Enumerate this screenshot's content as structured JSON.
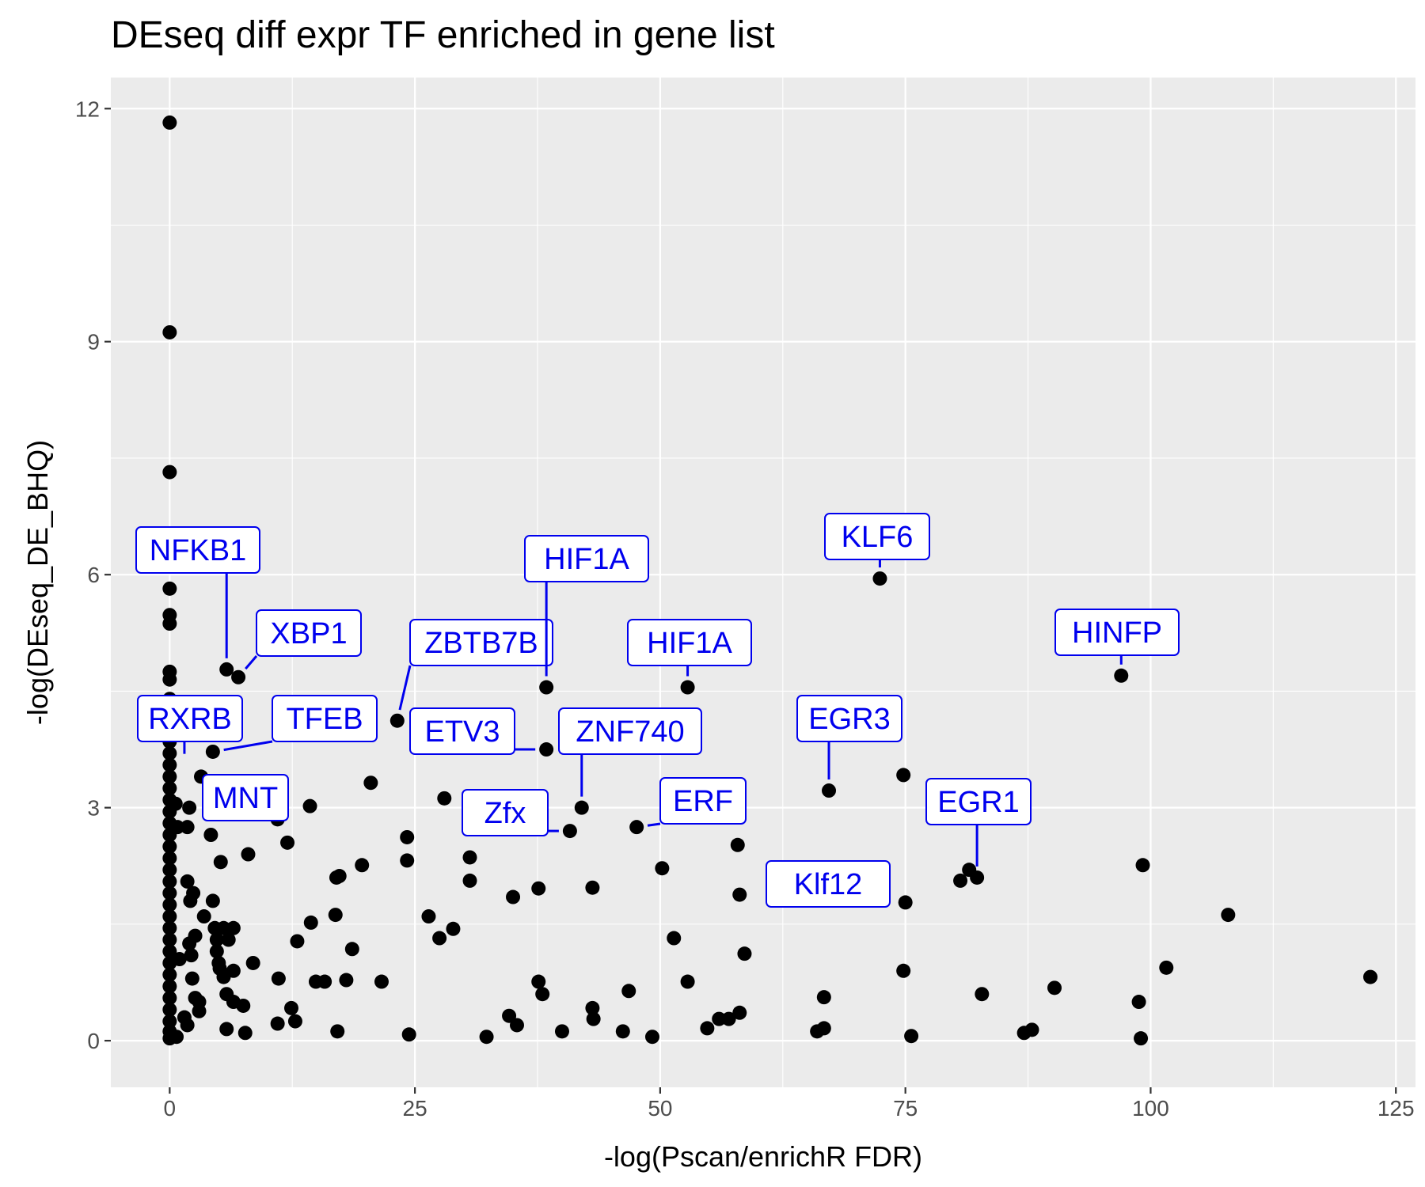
{
  "chart_data": {
    "type": "scatter",
    "title": "DEseq diff expr TF enriched in gene list",
    "xlabel": "-log(Pscan/enrichR FDR)",
    "ylabel": "-log(DEseq_DE_BHQ)",
    "xlim": [
      -6,
      127
    ],
    "ylim": [
      -0.6,
      12.4
    ],
    "xticks": [
      0,
      25,
      50,
      75,
      100,
      125
    ],
    "yticks": [
      0,
      3,
      6,
      9,
      12
    ],
    "grid": true,
    "legend": "none",
    "point_color": "#000000",
    "label_color": "#0000EE",
    "points": [
      {
        "x": 0,
        "y": 11.82
      },
      {
        "x": 0,
        "y": 9.12
      },
      {
        "x": 0,
        "y": 7.32
      },
      {
        "x": 0,
        "y": 5.82
      },
      {
        "x": 0,
        "y": 5.48
      },
      {
        "x": 0,
        "y": 5.37
      },
      {
        "x": 0,
        "y": 4.75
      },
      {
        "x": 0,
        "y": 4.65
      },
      {
        "x": 0,
        "y": 4.4
      },
      {
        "x": 0,
        "y": 4.2
      },
      {
        "x": 0,
        "y": 4.0
      },
      {
        "x": 0,
        "y": 3.85
      },
      {
        "x": 0,
        "y": 3.7
      },
      {
        "x": 0,
        "y": 3.55
      },
      {
        "x": 0,
        "y": 3.4
      },
      {
        "x": 0,
        "y": 3.25
      },
      {
        "x": 0,
        "y": 3.1
      },
      {
        "x": 0,
        "y": 2.95
      },
      {
        "x": 0,
        "y": 2.8
      },
      {
        "x": 0,
        "y": 2.65
      },
      {
        "x": 0,
        "y": 2.5
      },
      {
        "x": 0,
        "y": 2.35
      },
      {
        "x": 0,
        "y": 2.2
      },
      {
        "x": 0,
        "y": 2.05
      },
      {
        "x": 0,
        "y": 1.9
      },
      {
        "x": 0,
        "y": 1.75
      },
      {
        "x": 0,
        "y": 1.6
      },
      {
        "x": 0,
        "y": 1.45
      },
      {
        "x": 0,
        "y": 1.3
      },
      {
        "x": 0,
        "y": 1.15
      },
      {
        "x": 0,
        "y": 1.0
      },
      {
        "x": 0,
        "y": 0.85
      },
      {
        "x": 0,
        "y": 0.7
      },
      {
        "x": 0,
        "y": 0.55
      },
      {
        "x": 0,
        "y": 0.4
      },
      {
        "x": 0,
        "y": 0.25
      },
      {
        "x": 0,
        "y": 0.12
      },
      {
        "x": 0,
        "y": 0.03
      },
      {
        "x": 0.6,
        "y": 3.05
      },
      {
        "x": 0.8,
        "y": 2.75
      },
      {
        "x": 1.0,
        "y": 1.05
      },
      {
        "x": 0.7,
        "y": 0.05
      },
      {
        "x": 1.5,
        "y": 0.3
      },
      {
        "x": 1.8,
        "y": 2.05
      },
      {
        "x": 1.8,
        "y": 2.75
      },
      {
        "x": 2.1,
        "y": 1.8
      },
      {
        "x": 2.4,
        "y": 1.9
      },
      {
        "x": 2.0,
        "y": 1.25
      },
      {
        "x": 2.2,
        "y": 1.1
      },
      {
        "x": 2.6,
        "y": 1.35
      },
      {
        "x": 2.3,
        "y": 0.8
      },
      {
        "x": 2.6,
        "y": 0.55
      },
      {
        "x": 3.0,
        "y": 0.5
      },
      {
        "x": 3.0,
        "y": 0.38
      },
      {
        "x": 2.0,
        "y": 3.0
      },
      {
        "x": 3.2,
        "y": 3.4
      },
      {
        "x": 3.5,
        "y": 1.6
      },
      {
        "x": 1.8,
        "y": 0.2
      },
      {
        "x": 4.2,
        "y": 2.65
      },
      {
        "x": 4.4,
        "y": 1.8
      },
      {
        "x": 4.6,
        "y": 1.45
      },
      {
        "x": 4.8,
        "y": 1.3
      },
      {
        "x": 4.8,
        "y": 1.15
      },
      {
        "x": 5.0,
        "y": 1.0
      },
      {
        "x": 5.1,
        "y": 0.93
      },
      {
        "x": 5.5,
        "y": 0.82
      },
      {
        "x": 5.2,
        "y": 2.3
      },
      {
        "x": 5.5,
        "y": 1.45
      },
      {
        "x": 6.0,
        "y": 1.3
      },
      {
        "x": 6.5,
        "y": 1.45
      },
      {
        "x": 5.8,
        "y": 0.6
      },
      {
        "x": 6.5,
        "y": 0.5
      },
      {
        "x": 7.5,
        "y": 0.45
      },
      {
        "x": 6.5,
        "y": 0.9
      },
      {
        "x": 5.8,
        "y": 0.15
      },
      {
        "x": 7.7,
        "y": 0.1
      },
      {
        "x": 8.5,
        "y": 1.0
      },
      {
        "x": 8.0,
        "y": 2.4
      },
      {
        "x": 4.4,
        "y": 3.72
      },
      {
        "x": 5.8,
        "y": 4.78
      },
      {
        "x": 7.0,
        "y": 4.68
      },
      {
        "x": 11.0,
        "y": 2.85
      },
      {
        "x": 11.1,
        "y": 0.8
      },
      {
        "x": 11.0,
        "y": 0.22
      },
      {
        "x": 12.0,
        "y": 2.55
      },
      {
        "x": 12.4,
        "y": 0.42
      },
      {
        "x": 12.8,
        "y": 0.25
      },
      {
        "x": 13.0,
        "y": 1.28
      },
      {
        "x": 14.3,
        "y": 3.02
      },
      {
        "x": 14.4,
        "y": 1.52
      },
      {
        "x": 14.9,
        "y": 0.76
      },
      {
        "x": 15.8,
        "y": 0.76
      },
      {
        "x": 16.9,
        "y": 1.62
      },
      {
        "x": 17.0,
        "y": 2.1
      },
      {
        "x": 17.3,
        "y": 2.12
      },
      {
        "x": 18.0,
        "y": 0.78
      },
      {
        "x": 18.6,
        "y": 1.18
      },
      {
        "x": 17.1,
        "y": 0.12
      },
      {
        "x": 19.6,
        "y": 2.26
      },
      {
        "x": 20.5,
        "y": 3.32
      },
      {
        "x": 21.6,
        "y": 0.76
      },
      {
        "x": 23.2,
        "y": 4.12
      },
      {
        "x": 24.2,
        "y": 2.62
      },
      {
        "x": 24.2,
        "y": 2.32
      },
      {
        "x": 24.4,
        "y": 0.08
      },
      {
        "x": 26.4,
        "y": 1.6
      },
      {
        "x": 27.5,
        "y": 1.32
      },
      {
        "x": 28.0,
        "y": 3.12
      },
      {
        "x": 28.9,
        "y": 1.44
      },
      {
        "x": 30.6,
        "y": 2.36
      },
      {
        "x": 30.6,
        "y": 2.06
      },
      {
        "x": 32.3,
        "y": 0.05
      },
      {
        "x": 34.6,
        "y": 0.32
      },
      {
        "x": 35.0,
        "y": 1.85
      },
      {
        "x": 35.4,
        "y": 0.2
      },
      {
        "x": 37.6,
        "y": 1.96
      },
      {
        "x": 37.6,
        "y": 0.76
      },
      {
        "x": 38.0,
        "y": 0.6
      },
      {
        "x": 38.4,
        "y": 4.55
      },
      {
        "x": 38.4,
        "y": 3.75
      },
      {
        "x": 40.0,
        "y": 0.12
      },
      {
        "x": 40.8,
        "y": 2.7
      },
      {
        "x": 42.0,
        "y": 3.0
      },
      {
        "x": 43.1,
        "y": 1.97
      },
      {
        "x": 43.1,
        "y": 0.42
      },
      {
        "x": 43.2,
        "y": 0.28
      },
      {
        "x": 46.2,
        "y": 0.12
      },
      {
        "x": 46.8,
        "y": 0.64
      },
      {
        "x": 47.6,
        "y": 2.75
      },
      {
        "x": 49.2,
        "y": 0.05
      },
      {
        "x": 50.2,
        "y": 2.22
      },
      {
        "x": 51.4,
        "y": 1.32
      },
      {
        "x": 52.8,
        "y": 4.55
      },
      {
        "x": 52.8,
        "y": 0.76
      },
      {
        "x": 54.8,
        "y": 0.16
      },
      {
        "x": 56.0,
        "y": 0.28
      },
      {
        "x": 57.0,
        "y": 0.28
      },
      {
        "x": 57.9,
        "y": 2.52
      },
      {
        "x": 58.1,
        "y": 0.36
      },
      {
        "x": 58.1,
        "y": 1.88
      },
      {
        "x": 58.6,
        "y": 1.12
      },
      {
        "x": 61.7,
        "y": 2.1
      },
      {
        "x": 66.0,
        "y": 0.12
      },
      {
        "x": 66.7,
        "y": 0.16
      },
      {
        "x": 66.7,
        "y": 0.56
      },
      {
        "x": 67.2,
        "y": 3.22
      },
      {
        "x": 72.4,
        "y": 5.95
      },
      {
        "x": 74.8,
        "y": 3.42
      },
      {
        "x": 74.8,
        "y": 0.9
      },
      {
        "x": 75.0,
        "y": 1.78
      },
      {
        "x": 75.6,
        "y": 0.06
      },
      {
        "x": 80.6,
        "y": 2.06
      },
      {
        "x": 81.5,
        "y": 2.2
      },
      {
        "x": 82.3,
        "y": 2.1
      },
      {
        "x": 82.8,
        "y": 0.6
      },
      {
        "x": 87.1,
        "y": 0.1
      },
      {
        "x": 87.9,
        "y": 0.14
      },
      {
        "x": 90.2,
        "y": 0.68
      },
      {
        "x": 97.0,
        "y": 4.7
      },
      {
        "x": 98.8,
        "y": 0.5
      },
      {
        "x": 99.0,
        "y": 0.03
      },
      {
        "x": 99.2,
        "y": 2.26
      },
      {
        "x": 101.6,
        "y": 0.94
      },
      {
        "x": 107.9,
        "y": 1.62
      },
      {
        "x": 122.4,
        "y": 0.82
      }
    ],
    "labels": [
      {
        "text": "NFKB1",
        "x": 5.8,
        "y": 4.78
      },
      {
        "text": "XBP1",
        "x": 7.0,
        "y": 4.68
      },
      {
        "text": "RXRB",
        "x": 1.5,
        "y": 3.55
      },
      {
        "text": "TFEB",
        "x": 4.4,
        "y": 3.72
      },
      {
        "text": "MNT",
        "x": 3.2,
        "y": 3.4
      },
      {
        "text": "ZBTB7B",
        "x": 23.2,
        "y": 4.12
      },
      {
        "text": "ETV3",
        "x": 38.4,
        "y": 3.75
      },
      {
        "text": "HIF1A",
        "x": 38.4,
        "y": 4.55
      },
      {
        "text": "HIF1A",
        "x": 52.8,
        "y": 4.55
      },
      {
        "text": "ZNF740",
        "x": 42.0,
        "y": 3.0
      },
      {
        "text": "Zfx",
        "x": 40.8,
        "y": 2.7
      },
      {
        "text": "ERF",
        "x": 47.6,
        "y": 2.75
      },
      {
        "text": "Klf12",
        "x": 61.7,
        "y": 2.1
      },
      {
        "text": "KLF6",
        "x": 72.4,
        "y": 5.95
      },
      {
        "text": "EGR3",
        "x": 67.2,
        "y": 3.22
      },
      {
        "text": "EGR1",
        "x": 82.3,
        "y": 2.1
      },
      {
        "text": "HINFP",
        "x": 97.0,
        "y": 4.7
      }
    ]
  }
}
